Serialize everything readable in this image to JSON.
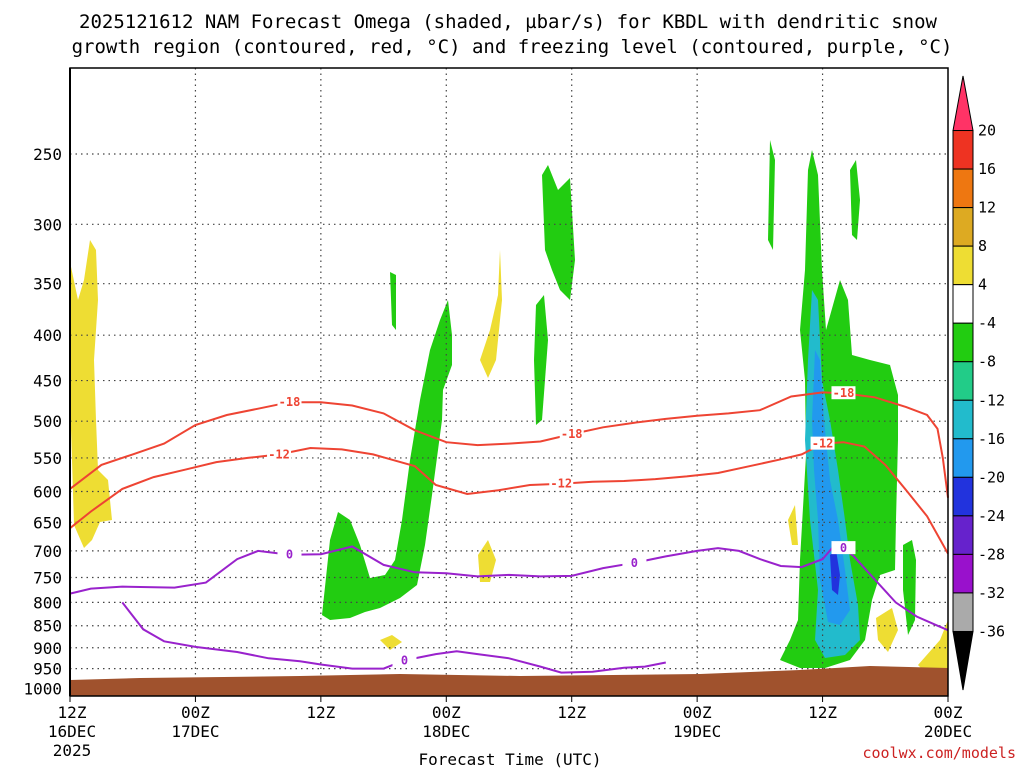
{
  "chart_data": {
    "type": "contour",
    "title_line1": "2025121612 NAM Forecast Omega (shaded, µbar/s) for KBDL with dendritic snow",
    "title_line2": "growth region (contoured, red, °C) and freezing level (contoured, purple, °C)",
    "xlabel": "Forecast Time (UTC)",
    "credit": "coolwx.com/models",
    "x_ticks": [
      {
        "hour": 0,
        "l1": "12Z",
        "l2": "16DEC",
        "l3": "2025"
      },
      {
        "hour": 12,
        "l1": "00Z",
        "l2": "17DEC",
        "l3": ""
      },
      {
        "hour": 24,
        "l1": "12Z",
        "l2": "",
        "l3": ""
      },
      {
        "hour": 36,
        "l1": "00Z",
        "l2": "18DEC",
        "l3": ""
      },
      {
        "hour": 48,
        "l1": "12Z",
        "l2": "",
        "l3": ""
      },
      {
        "hour": 60,
        "l1": "00Z",
        "l2": "19DEC",
        "l3": ""
      },
      {
        "hour": 72,
        "l1": "12Z",
        "l2": "",
        "l3": ""
      },
      {
        "hour": 84,
        "l1": "00Z",
        "l2": "20DEC",
        "l3": ""
      }
    ],
    "x_range_hours": [
      0,
      84
    ],
    "y_ticks": [
      "250",
      "300",
      "350",
      "400",
      "450",
      "500",
      "550",
      "600",
      "650",
      "700",
      "750",
      "800",
      "850",
      "900",
      "950",
      "1000"
    ],
    "y_range_hPa": [
      200,
      1020
    ],
    "y_scale": "log",
    "grid": "dotted",
    "colorbar": {
      "labels": [
        "20",
        "16",
        "12",
        "8",
        "4",
        "-4",
        "-8",
        "-12",
        "-16",
        "-20",
        "-24",
        "-28",
        "-32",
        "-36"
      ],
      "colors": [
        "#ff3366",
        "#ee3322",
        "#ee7711",
        "#ddaa22",
        "#eedd33",
        "#ffffff",
        "#22cc11",
        "#22cc88",
        "#22bbcc",
        "#2299ee",
        "#2233dd",
        "#6622cc",
        "#9911cc",
        "#aaaaaa",
        "#000000"
      ]
    },
    "contours": [
      {
        "name": "-18",
        "color": "#ee4433",
        "points": [
          [
            0,
            596
          ],
          [
            3,
            560
          ],
          [
            6,
            545
          ],
          [
            9,
            530
          ],
          [
            12,
            505
          ],
          [
            15,
            492
          ],
          [
            18,
            484
          ],
          [
            21,
            476
          ],
          [
            24,
            476
          ],
          [
            27,
            480
          ],
          [
            30,
            490
          ],
          [
            33,
            512
          ],
          [
            36,
            528
          ],
          [
            39,
            532
          ],
          [
            42,
            530
          ],
          [
            45,
            527
          ],
          [
            48,
            517
          ],
          [
            51,
            508
          ],
          [
            54,
            502
          ],
          [
            57,
            497
          ],
          [
            60,
            493
          ],
          [
            63,
            490
          ],
          [
            66,
            486
          ],
          [
            69,
            469
          ],
          [
            72,
            464
          ],
          [
            74,
            465
          ],
          [
            77,
            470
          ],
          [
            80,
            482
          ],
          [
            82,
            492
          ],
          [
            83,
            510
          ],
          [
            83.5,
            550
          ],
          [
            84,
            610
          ]
        ]
      },
      {
        "name": "-12",
        "color": "#ee4433",
        "points": [
          [
            0,
            660
          ],
          [
            2,
            632
          ],
          [
            5,
            596
          ],
          [
            8,
            578
          ],
          [
            11,
            567
          ],
          [
            14,
            556
          ],
          [
            17,
            550
          ],
          [
            20,
            545
          ],
          [
            23,
            536
          ],
          [
            26,
            538
          ],
          [
            29,
            545
          ],
          [
            33,
            562
          ],
          [
            35,
            590
          ],
          [
            38,
            604
          ],
          [
            41,
            598
          ],
          [
            44,
            590
          ],
          [
            47,
            588
          ],
          [
            50,
            585
          ],
          [
            53,
            584
          ],
          [
            56,
            581
          ],
          [
            59,
            577
          ],
          [
            62,
            572
          ],
          [
            65,
            562
          ],
          [
            68,
            552
          ],
          [
            70,
            545
          ],
          [
            72,
            530
          ],
          [
            74,
            528
          ],
          [
            76,
            534
          ],
          [
            78,
            560
          ],
          [
            80,
            598
          ],
          [
            82,
            640
          ],
          [
            84,
            705
          ]
        ]
      },
      {
        "name": "0",
        "color": "#9922cc",
        "points": [
          [
            0,
            782
          ],
          [
            2,
            772
          ],
          [
            5,
            768
          ],
          [
            10,
            770
          ],
          [
            13,
            760
          ],
          [
            16,
            715
          ],
          [
            18,
            700
          ],
          [
            21,
            707
          ],
          [
            24,
            706
          ],
          [
            27,
            692
          ],
          [
            30,
            726
          ],
          [
            33,
            740
          ],
          [
            36,
            742
          ],
          [
            39,
            748
          ],
          [
            42,
            745
          ],
          [
            45,
            748
          ],
          [
            48,
            747
          ],
          [
            51,
            732
          ],
          [
            54,
            722
          ],
          [
            57,
            710
          ],
          [
            60,
            700
          ],
          [
            62,
            695
          ],
          [
            64,
            700
          ],
          [
            66,
            715
          ],
          [
            68,
            728
          ],
          [
            70,
            730
          ],
          [
            72,
            715
          ],
          [
            73,
            693
          ],
          [
            74,
            695
          ],
          [
            75,
            710
          ],
          [
            77,
            754
          ],
          [
            79,
            800
          ],
          [
            81,
            830
          ],
          [
            83,
            850
          ],
          [
            84,
            860
          ]
        ]
      },
      {
        "name": "0",
        "color": "#9922cc",
        "points": [
          [
            5,
            800
          ],
          [
            7,
            858
          ],
          [
            9,
            885
          ],
          [
            12,
            898
          ],
          [
            16,
            910
          ],
          [
            19,
            925
          ],
          [
            22,
            932
          ],
          [
            24,
            940
          ],
          [
            27,
            950
          ],
          [
            30,
            950
          ],
          [
            32,
            930
          ],
          [
            35,
            915
          ],
          [
            37,
            908
          ],
          [
            39,
            915
          ],
          [
            42,
            925
          ],
          [
            45,
            945
          ],
          [
            47,
            960
          ],
          [
            50,
            958
          ],
          [
            53,
            948
          ],
          [
            55,
            945
          ],
          [
            57,
            935
          ]
        ]
      }
    ]
  }
}
